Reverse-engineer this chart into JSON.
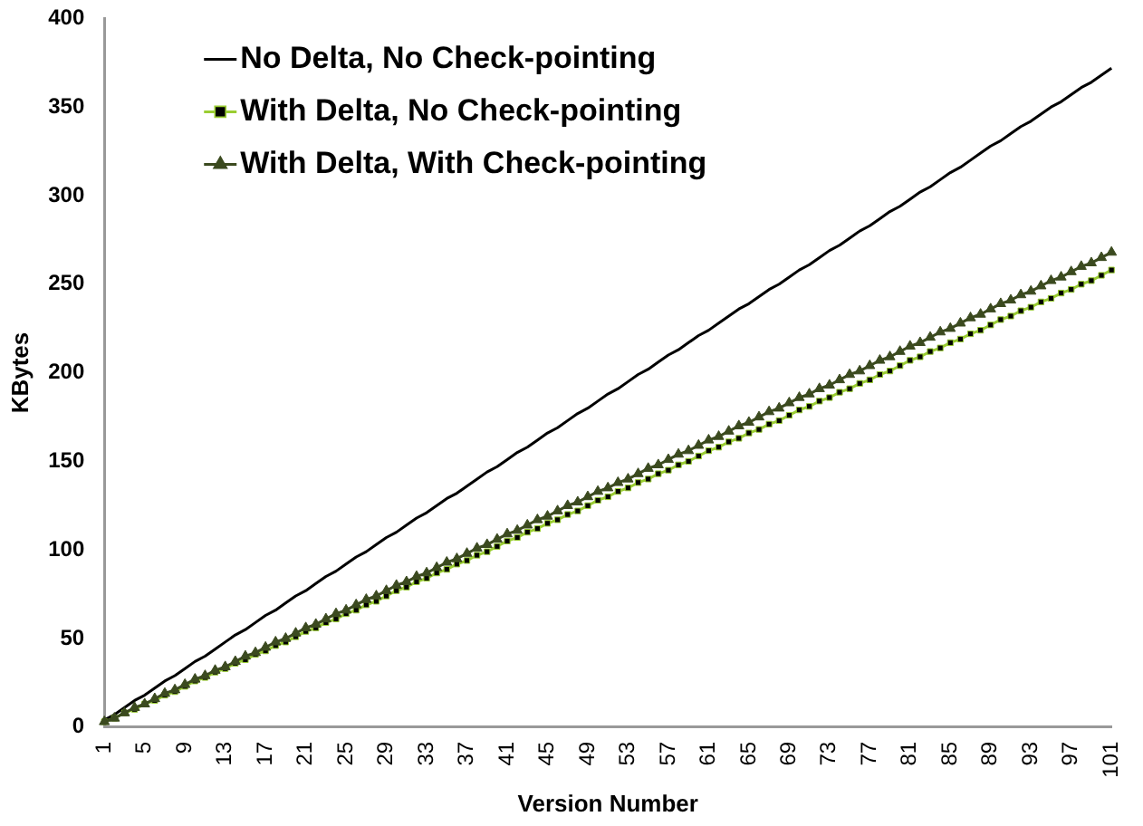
{
  "chart_data": {
    "type": "line",
    "xlabel": "Version Number",
    "ylabel": "KBytes",
    "categories": [
      "1",
      null,
      null,
      null,
      "5",
      null,
      null,
      null,
      "9",
      null,
      null,
      null,
      "13",
      null,
      null,
      null,
      "17",
      null,
      null,
      null,
      "21",
      null,
      null,
      null,
      "25",
      null,
      null,
      null,
      "29",
      null,
      null,
      null,
      "33",
      null,
      null,
      null,
      "37",
      null,
      null,
      null,
      "41",
      null,
      null,
      null,
      "45",
      null,
      null,
      null,
      "49",
      null,
      null,
      null,
      "53",
      null,
      null,
      null,
      "57",
      null,
      null,
      null,
      "61",
      null,
      null,
      null,
      "65",
      null,
      null,
      null,
      "69",
      null,
      null,
      null,
      "73",
      null,
      null,
      null,
      "77",
      null,
      null,
      null,
      "81",
      null,
      null,
      null,
      "85",
      null,
      null,
      null,
      "89",
      null,
      null,
      null,
      "93",
      null,
      null,
      null,
      "97",
      null,
      null,
      null,
      "101"
    ],
    "ylim": [
      0,
      400
    ],
    "yticks": [
      0,
      50,
      100,
      150,
      200,
      250,
      300,
      350,
      400
    ],
    "grid": false,
    "legend": "top left",
    "series": [
      {
        "name": "No Delta, No Check-pointing",
        "color": "#000000",
        "marker": "none",
        "values": [
          4,
          7,
          11,
          15,
          18,
          22,
          26,
          29,
          33,
          37,
          40,
          44,
          48,
          52,
          55,
          59,
          63,
          66,
          70,
          74,
          77,
          81,
          85,
          88,
          92,
          96,
          99,
          103,
          107,
          110,
          114,
          118,
          121,
          125,
          129,
          132,
          136,
          140,
          144,
          147,
          151,
          155,
          158,
          162,
          166,
          169,
          173,
          177,
          180,
          184,
          188,
          191,
          195,
          199,
          202,
          206,
          210,
          213,
          217,
          221,
          224,
          228,
          232,
          236,
          239,
          243,
          247,
          250,
          254,
          258,
          261,
          265,
          269,
          272,
          276,
          280,
          283,
          287,
          291,
          294,
          298,
          302,
          305,
          309,
          313,
          316,
          320,
          324,
          328,
          331,
          335,
          339,
          342,
          346,
          350,
          353,
          357,
          361,
          364,
          368,
          372
        ]
      },
      {
        "name": "With Delta, No Check-pointing",
        "color": "#9acd32",
        "marker": "square",
        "values": [
          3,
          5,
          8,
          10,
          13,
          15,
          18,
          20,
          23,
          26,
          28,
          31,
          33,
          36,
          38,
          41,
          43,
          46,
          48,
          51,
          54,
          56,
          59,
          61,
          64,
          66,
          69,
          71,
          74,
          77,
          79,
          82,
          84,
          87,
          89,
          92,
          94,
          97,
          99,
          102,
          105,
          107,
          110,
          112,
          115,
          117,
          120,
          122,
          125,
          128,
          130,
          133,
          135,
          138,
          140,
          143,
          145,
          148,
          150,
          153,
          156,
          158,
          161,
          163,
          166,
          168,
          171,
          173,
          176,
          179,
          181,
          184,
          186,
          189,
          191,
          194,
          196,
          199,
          201,
          204,
          207,
          209,
          212,
          214,
          217,
          219,
          222,
          224,
          227,
          230,
          232,
          235,
          237,
          240,
          242,
          245,
          247,
          250,
          252,
          255,
          258
        ]
      },
      {
        "name": "With Delta, With Check-pointing",
        "color": "#3b4a1f",
        "marker": "triangle",
        "values": [
          3,
          5,
          8,
          11,
          13,
          16,
          19,
          21,
          24,
          27,
          29,
          32,
          34,
          37,
          40,
          42,
          45,
          48,
          50,
          53,
          56,
          58,
          61,
          64,
          66,
          69,
          72,
          74,
          77,
          80,
          82,
          85,
          87,
          90,
          93,
          95,
          98,
          101,
          103,
          106,
          109,
          111,
          114,
          117,
          119,
          122,
          125,
          127,
          130,
          133,
          135,
          138,
          140,
          143,
          146,
          148,
          151,
          154,
          156,
          159,
          162,
          164,
          167,
          170,
          172,
          175,
          178,
          180,
          183,
          186,
          188,
          191,
          193,
          196,
          199,
          201,
          204,
          207,
          209,
          212,
          215,
          217,
          220,
          223,
          225,
          228,
          231,
          233,
          236,
          239,
          241,
          244,
          246,
          249,
          252,
          254,
          257,
          260,
          262,
          265,
          268
        ]
      }
    ]
  }
}
